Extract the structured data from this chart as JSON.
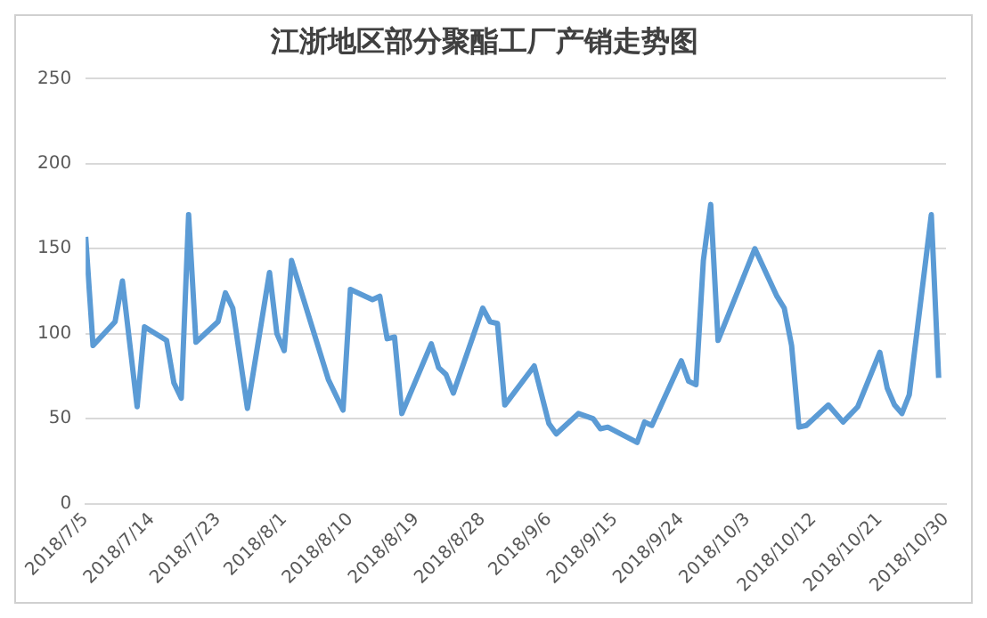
{
  "chart_data": {
    "type": "line",
    "title": "江浙地区部分聚酯工厂产销走势图",
    "x": [
      "2018-07-05",
      "2018-07-06",
      "2018-07-09",
      "2018-07-10",
      "2018-07-12",
      "2018-07-13",
      "2018-07-16",
      "2018-07-17",
      "2018-07-18",
      "2018-07-19",
      "2018-07-20",
      "2018-07-23",
      "2018-07-24",
      "2018-07-25",
      "2018-07-27",
      "2018-07-30",
      "2018-07-31",
      "2018-08-01",
      "2018-08-02",
      "2018-08-07",
      "2018-08-09",
      "2018-08-10",
      "2018-08-13",
      "2018-08-14",
      "2018-08-15",
      "2018-08-16",
      "2018-08-17",
      "2018-08-21",
      "2018-08-22",
      "2018-08-23",
      "2018-08-24",
      "2018-08-28",
      "2018-08-29",
      "2018-08-30",
      "2018-08-31",
      "2018-09-04",
      "2018-09-06",
      "2018-09-07",
      "2018-09-10",
      "2018-09-12",
      "2018-09-13",
      "2018-09-14",
      "2018-09-18",
      "2018-09-19",
      "2018-09-20",
      "2018-09-24",
      "2018-09-25",
      "2018-09-26",
      "2018-09-27",
      "2018-09-28",
      "2018-09-29",
      "2018-10-04",
      "2018-10-07",
      "2018-10-08",
      "2018-10-09",
      "2018-10-10",
      "2018-10-11",
      "2018-10-14",
      "2018-10-16",
      "2018-10-18",
      "2018-10-21",
      "2018-10-22",
      "2018-10-23",
      "2018-10-24",
      "2018-10-25",
      "2018-10-28",
      "2018-10-29"
    ],
    "series": [
      {
        "color": "#5b9bd5",
        "values": [
          157,
          93,
          107,
          131,
          57,
          104,
          96,
          71,
          62,
          170,
          95,
          107,
          124,
          115,
          56,
          136,
          100,
          90,
          143,
          73,
          55,
          126,
          120,
          122,
          97,
          98,
          53,
          94,
          80,
          76,
          65,
          115,
          107,
          106,
          58,
          81,
          47,
          41,
          53,
          50,
          44,
          45,
          36,
          48,
          46,
          84,
          72,
          70,
          143,
          176,
          96,
          150,
          122,
          115,
          93,
          45,
          46,
          58,
          48,
          57,
          89,
          68,
          58,
          53,
          64,
          170,
          74
        ]
      }
    ],
    "xlim": [
      "2018-07-05",
      "2018-10-30"
    ],
    "xticks": [
      {
        "value": "2018-07-05",
        "label": "2018/7/5"
      },
      {
        "value": "2018-07-14",
        "label": "2018/7/14"
      },
      {
        "value": "2018-07-23",
        "label": "2018/7/23"
      },
      {
        "value": "2018-08-01",
        "label": "2018/8/1"
      },
      {
        "value": "2018-08-10",
        "label": "2018/8/10"
      },
      {
        "value": "2018-08-19",
        "label": "2018/8/19"
      },
      {
        "value": "2018-08-28",
        "label": "2018/8/28"
      },
      {
        "value": "2018-09-06",
        "label": "2018/9/6"
      },
      {
        "value": "2018-09-15",
        "label": "2018/9/15"
      },
      {
        "value": "2018-09-24",
        "label": "2018/9/24"
      },
      {
        "value": "2018-10-03",
        "label": "2018/10/3"
      },
      {
        "value": "2018-10-12",
        "label": "2018/10/12"
      },
      {
        "value": "2018-10-21",
        "label": "2018/10/21"
      },
      {
        "value": "2018-10-30",
        "label": "2018/10/30"
      }
    ],
    "ylim": [
      0,
      250
    ],
    "yticks": [
      0,
      50,
      100,
      150,
      200,
      250
    ],
    "grid": "y",
    "legend": false,
    "marker": "none",
    "line_style": "solid"
  }
}
